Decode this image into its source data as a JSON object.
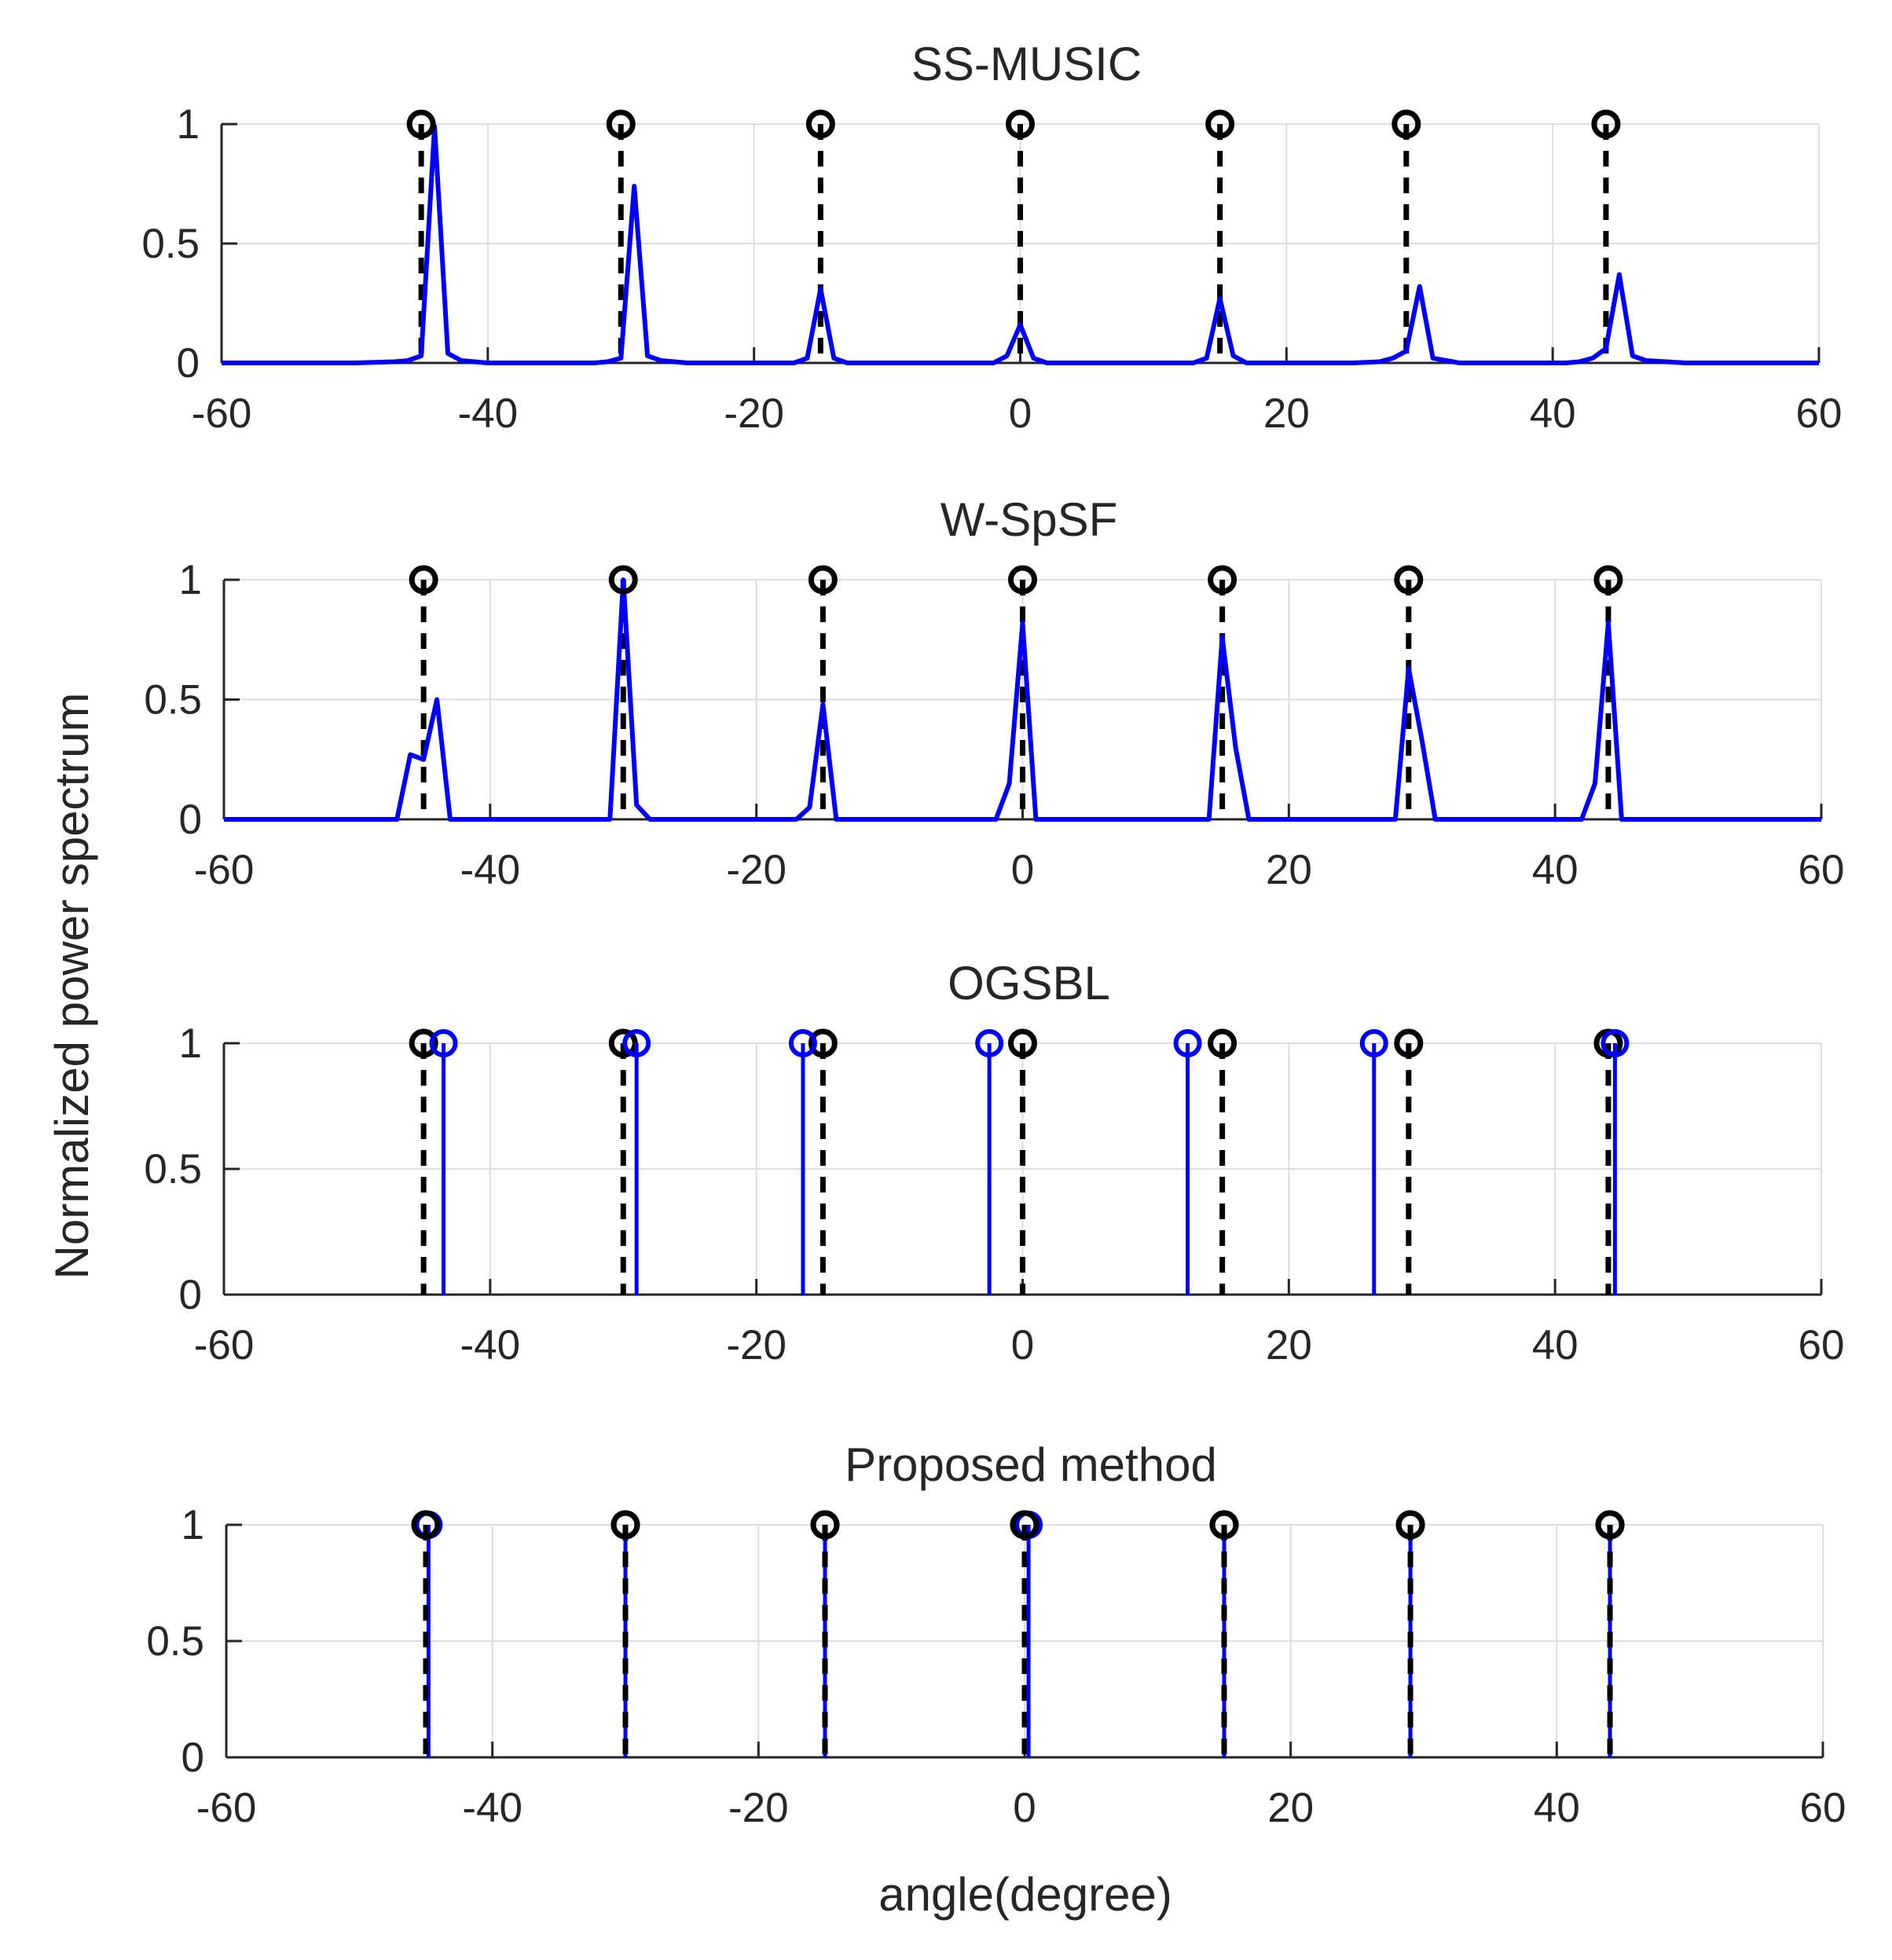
{
  "figure": {
    "ylabel": "Normalized power spectrum",
    "xlabel": "angle(degree)",
    "colors": {
      "estimate": "#0000ff",
      "truth": "#000000",
      "grid": "#dddddd",
      "axis": "#262626"
    },
    "true_doas": [
      -45,
      -30,
      -15,
      0,
      15,
      29,
      44
    ]
  },
  "chart_data": [
    {
      "type": "line",
      "title": "SS-MUSIC",
      "xlim": [
        -60,
        60
      ],
      "ylim": [
        0,
        1
      ],
      "xticks": [
        -60,
        -40,
        -20,
        0,
        20,
        40,
        60
      ],
      "yticks": [
        0,
        0.5,
        1
      ],
      "xtick_labels": [
        "-60",
        "-40",
        "-20",
        "0",
        "20",
        "40",
        "60"
      ],
      "ytick_labels": [
        "0",
        "0.5",
        "1"
      ],
      "grid": true,
      "truth": {
        "x": [
          -45,
          -30,
          -15,
          0,
          15,
          29,
          44
        ],
        "y": 1
      },
      "series": [
        {
          "name": "spectrum",
          "x": [
            -60,
            -50,
            -47,
            -46,
            -45,
            -44,
            -43,
            -42,
            -40,
            -35,
            -32,
            -31,
            -30,
            -29,
            -28,
            -27,
            -25,
            -20,
            -17,
            -16,
            -15,
            -14,
            -13,
            -10,
            -5,
            -2,
            -1,
            0,
            1,
            2,
            5,
            10,
            13,
            14,
            15,
            16,
            17,
            20,
            25,
            27,
            28,
            29,
            30,
            31,
            33,
            38,
            41,
            42,
            43,
            44,
            45,
            46,
            47,
            50,
            55,
            60
          ],
          "y": [
            0,
            0,
            0.005,
            0.01,
            0.03,
            0.99,
            0.04,
            0.01,
            0,
            0,
            0,
            0.005,
            0.02,
            0.74,
            0.03,
            0.01,
            0,
            0,
            0,
            0.02,
            0.31,
            0.02,
            0,
            0,
            0,
            0,
            0.03,
            0.16,
            0.02,
            0,
            0,
            0,
            0,
            0.02,
            0.27,
            0.03,
            0,
            0,
            0,
            0.005,
            0.02,
            0.05,
            0.32,
            0.02,
            0,
            0,
            0,
            0.005,
            0.02,
            0.06,
            0.37,
            0.03,
            0.01,
            0,
            0,
            0
          ]
        }
      ]
    },
    {
      "type": "line",
      "title": "W-SpSF",
      "xlim": [
        -60,
        60
      ],
      "ylim": [
        0,
        1
      ],
      "xticks": [
        -60,
        -40,
        -20,
        0,
        20,
        40,
        60
      ],
      "yticks": [
        0,
        0.5,
        1
      ],
      "xtick_labels": [
        "-60",
        "-40",
        "-20",
        "0",
        "20",
        "40",
        "60"
      ],
      "ytick_labels": [
        "0",
        "0.5",
        "1"
      ],
      "grid": true,
      "truth": {
        "x": [
          -45,
          -30,
          -15,
          0,
          15,
          29,
          44
        ],
        "y": 1
      },
      "series": [
        {
          "name": "spectrum",
          "x": [
            -60,
            -47,
            -46,
            -45,
            -44,
            -43,
            -32,
            -31,
            -30,
            -29,
            -28,
            -20,
            -17,
            -16,
            -15,
            -14,
            -10,
            -2,
            -1,
            0,
            1,
            5,
            14,
            15,
            16,
            17,
            20,
            28,
            29,
            30,
            31,
            35,
            42,
            43,
            44,
            45,
            50,
            60
          ],
          "y": [
            0,
            0,
            0.27,
            0.25,
            0.5,
            0,
            0,
            0,
            1,
            0.06,
            0,
            0,
            0,
            0.05,
            0.48,
            0,
            0,
            0,
            0.15,
            0.82,
            0,
            0,
            0,
            0.76,
            0.3,
            0,
            0,
            0,
            0.63,
            0.33,
            0,
            0,
            0,
            0.15,
            0.82,
            0,
            0,
            0
          ]
        }
      ]
    },
    {
      "type": "stem",
      "title": "OGSBL",
      "xlim": [
        -60,
        60
      ],
      "ylim": [
        0,
        1
      ],
      "xticks": [
        -60,
        -40,
        -20,
        0,
        20,
        40,
        60
      ],
      "yticks": [
        0,
        0.5,
        1
      ],
      "xtick_labels": [
        "-60",
        "-40",
        "-20",
        "0",
        "20",
        "40",
        "60"
      ],
      "ytick_labels": [
        "0",
        "0.5",
        "1"
      ],
      "grid": true,
      "truth": {
        "x": [
          -45,
          -30,
          -15,
          0,
          15,
          29,
          44
        ],
        "y": 1
      },
      "series": [
        {
          "name": "estimate",
          "x": [
            -43.5,
            -29,
            -16.5,
            -2.5,
            12.4,
            26.4,
            44.5
          ],
          "y": [
            1,
            1,
            1,
            1,
            1,
            1,
            1
          ]
        }
      ]
    },
    {
      "type": "stem",
      "title": "Proposed method",
      "xlim": [
        -60,
        60
      ],
      "ylim": [
        0,
        1
      ],
      "xticks": [
        -60,
        -40,
        -20,
        0,
        20,
        40,
        60
      ],
      "yticks": [
        0,
        0.5,
        1
      ],
      "xtick_labels": [
        "-60",
        "-40",
        "-20",
        "0",
        "20",
        "40",
        "60"
      ],
      "ytick_labels": [
        "0",
        "0.5",
        "1"
      ],
      "grid": true,
      "truth": {
        "x": [
          -45,
          -30,
          -15,
          0,
          15,
          29,
          44
        ],
        "y": 1
      },
      "series": [
        {
          "name": "estimate",
          "x": [
            -44.8,
            -30,
            -15,
            0.3,
            15,
            29,
            44
          ],
          "y": [
            1,
            1,
            1,
            1,
            1,
            1,
            1
          ]
        }
      ]
    }
  ]
}
